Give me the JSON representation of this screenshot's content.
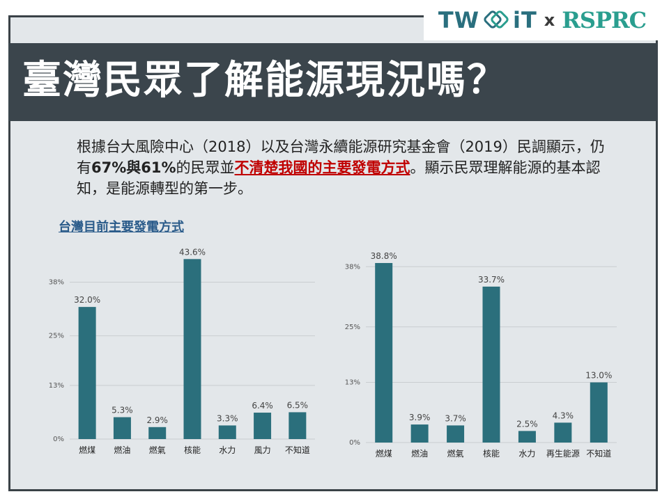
{
  "header": {
    "logo_left": "TW",
    "logo_left2": "iT",
    "logo_x": "x",
    "logo_right": "RSPRC",
    "title": "臺灣民眾了解能源現況嗎？"
  },
  "intro": {
    "part1": "根據台大風險中心（2018）以及台灣永續能源研究基金會（2019）民調顯示，仍有",
    "part2": "67%與61%",
    "part3": "的民眾並",
    "part4": "不清楚我國的主要發電方式",
    "part5": "。顯示民眾理解能源的基本認知，是能源轉型的第一步。"
  },
  "chart_subtitle": "台灣目前主要發電方式",
  "colors": {
    "bar": "#2b6f7c",
    "title_band": "#3b454c",
    "highlight": "#c00000"
  },
  "chart_data": [
    {
      "type": "bar",
      "title": "台灣目前主要發電方式",
      "categories": [
        "燃煤",
        "燃油",
        "燃氣",
        "核能",
        "水力",
        "風力",
        "不知道"
      ],
      "values": [
        32.0,
        5.3,
        2.9,
        43.6,
        3.3,
        6.4,
        6.5
      ],
      "value_labels": [
        "32.0%",
        "5.3%",
        "2.9%",
        "43.6%",
        "3.3%",
        "6.4%",
        "6.5%"
      ],
      "yticks": [
        0,
        13,
        25,
        38
      ],
      "ytick_labels": [
        "0%",
        "13%",
        "25%",
        "38%"
      ],
      "ylim": [
        0,
        45
      ],
      "grid": true
    },
    {
      "type": "bar",
      "title": "",
      "categories": [
        "燃煤",
        "燃油",
        "燃氣",
        "核能",
        "水力",
        "再生能源",
        "不知道"
      ],
      "values": [
        38.8,
        3.9,
        3.7,
        33.7,
        2.5,
        4.3,
        13.0
      ],
      "value_labels": [
        "38.8%",
        "3.9%",
        "3.7%",
        "33.7%",
        "2.5%",
        "4.3%",
        "13.0%"
      ],
      "yticks": [
        0,
        13,
        25,
        38
      ],
      "ytick_labels": [
        "0%",
        "13%",
        "25%",
        "38%"
      ],
      "ylim": [
        0,
        40
      ],
      "grid": true
    }
  ]
}
